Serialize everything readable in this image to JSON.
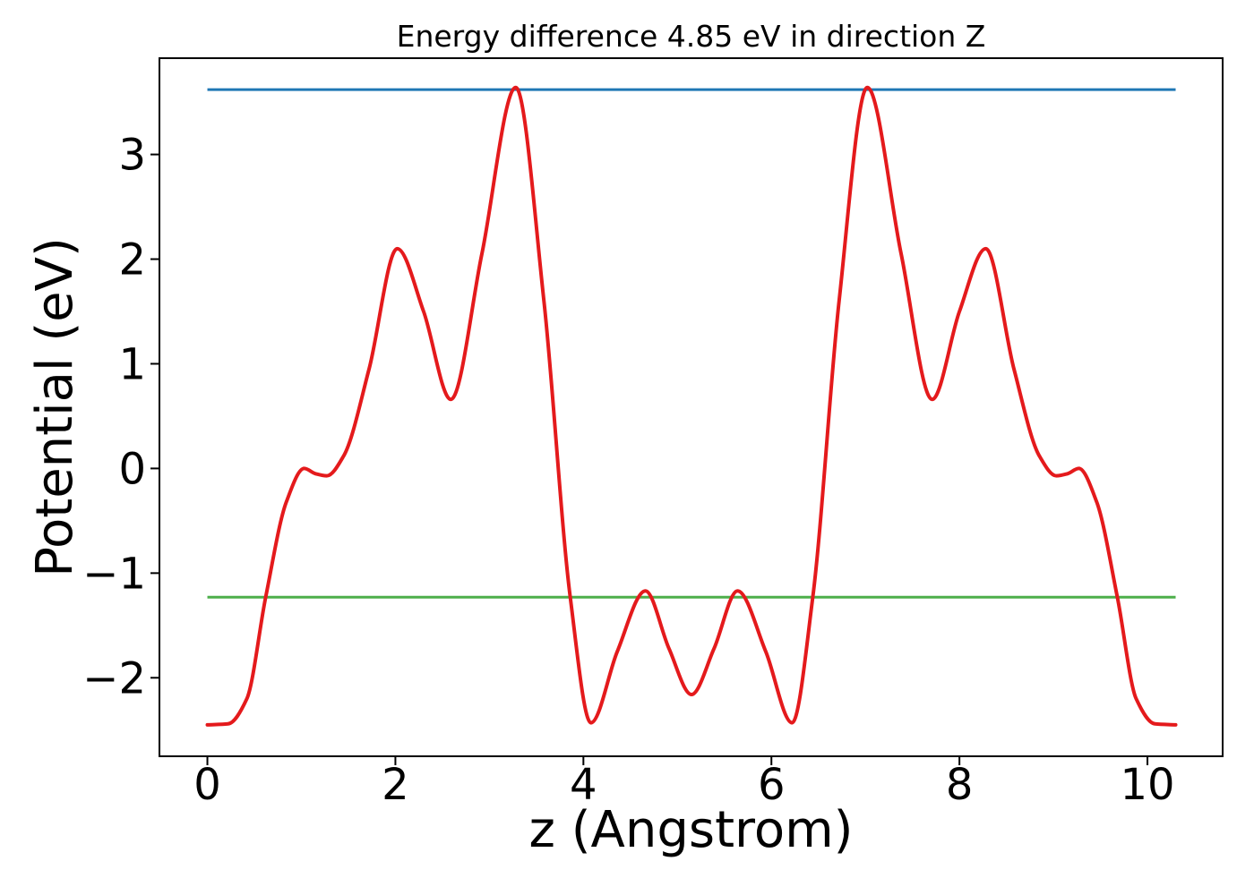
{
  "chart_data": {
    "type": "line",
    "title": "Energy difference 4.85 eV in direction Z",
    "xlabel": "z (Angstrom)",
    "ylabel": "Potential (eV)",
    "xlim": [
      -0.51,
      10.8
    ],
    "ylim": [
      -2.75,
      3.92
    ],
    "xticks": [
      0,
      2,
      4,
      6,
      8,
      10
    ],
    "xtick_labels": [
      "0",
      "2",
      "4",
      "6",
      "8",
      "10"
    ],
    "yticks": [
      3,
      2,
      1,
      0,
      -1,
      -2
    ],
    "ytick_labels": [
      "3",
      "2",
      "1",
      "0",
      "−1",
      "−2"
    ],
    "grid": false,
    "legend": "none",
    "energy_difference_eV": 4.85,
    "direction": "Z",
    "series": [
      {
        "name": "upper-energy-level",
        "style": "hline",
        "y": 3.62,
        "x_range": [
          0.0,
          10.3
        ],
        "color": "#1f77b4",
        "linewidth": 3
      },
      {
        "name": "lower-energy-level",
        "style": "hline",
        "y": -1.23,
        "x_range": [
          0.0,
          10.3
        ],
        "color": "#4daf4a",
        "linewidth": 3
      },
      {
        "name": "potential-profile",
        "style": "curve",
        "color": "#e41a1c",
        "linewidth": 4,
        "points": [
          [
            0.0,
            -2.45
          ],
          [
            0.22,
            -2.44
          ],
          [
            0.42,
            -2.2
          ],
          [
            0.62,
            -1.23
          ],
          [
            0.84,
            -0.32
          ],
          [
            1.03,
            0.0
          ],
          [
            1.15,
            -0.05
          ],
          [
            1.27,
            -0.07
          ],
          [
            1.45,
            0.12
          ],
          [
            1.72,
            0.95
          ],
          [
            2.02,
            2.1
          ],
          [
            2.3,
            1.5
          ],
          [
            2.59,
            0.66
          ],
          [
            2.92,
            2.05
          ],
          [
            3.28,
            3.64
          ],
          [
            3.58,
            1.6
          ],
          [
            3.86,
            -1.23
          ],
          [
            4.08,
            -2.43
          ],
          [
            4.36,
            -1.75
          ],
          [
            4.66,
            -1.17
          ],
          [
            4.91,
            -1.72
          ],
          [
            5.15,
            -2.16
          ],
          [
            5.39,
            -1.72
          ],
          [
            5.64,
            -1.17
          ],
          [
            5.94,
            -1.75
          ],
          [
            6.22,
            -2.43
          ],
          [
            6.44,
            -1.23
          ],
          [
            6.72,
            1.6
          ],
          [
            7.02,
            3.64
          ],
          [
            7.38,
            2.05
          ],
          [
            7.71,
            0.66
          ],
          [
            8.0,
            1.5
          ],
          [
            8.28,
            2.1
          ],
          [
            8.58,
            0.95
          ],
          [
            8.85,
            0.12
          ],
          [
            9.03,
            -0.07
          ],
          [
            9.15,
            -0.05
          ],
          [
            9.27,
            0.0
          ],
          [
            9.46,
            -0.32
          ],
          [
            9.68,
            -1.23
          ],
          [
            9.88,
            -2.2
          ],
          [
            10.08,
            -2.44
          ],
          [
            10.3,
            -2.45
          ]
        ]
      }
    ]
  }
}
